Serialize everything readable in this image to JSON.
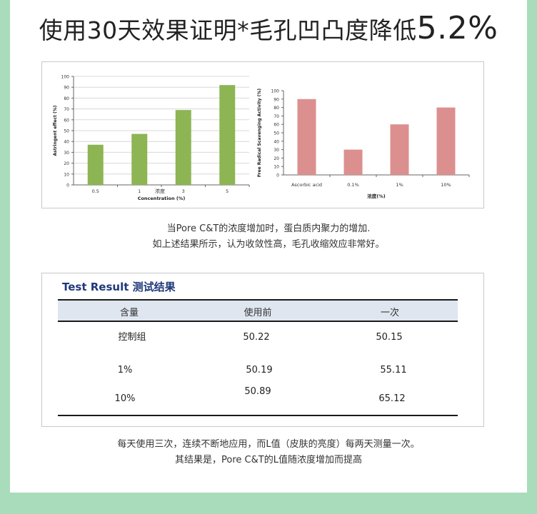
{
  "headline": {
    "text": "使用30天效果证明*毛孔凹凸度降低",
    "value": "5.2%"
  },
  "chart_data": [
    {
      "type": "bar",
      "categories": [
        "0.5",
        "1",
        "3",
        "5"
      ],
      "values": [
        37,
        47,
        69,
        92
      ],
      "ylabel": "Astringent effect (%)",
      "xlabel": "Concentration (%)",
      "xlabel_cn": "浓度",
      "ylim": [
        0,
        100
      ],
      "yticks": [
        0,
        10,
        20,
        30,
        40,
        50,
        60,
        70,
        80,
        90,
        100
      ],
      "color": "#8db553",
      "grid": true
    },
    {
      "type": "bar",
      "categories": [
        "Ascorbic acid",
        "0.1%",
        "1%",
        "10%"
      ],
      "values": [
        90,
        30,
        60,
        80
      ],
      "ylabel": "Free Radical Scavenging Activity (%)",
      "xlabel": "浓度(%)",
      "ylim": [
        0,
        100
      ],
      "yticks": [
        0,
        10,
        20,
        30,
        40,
        50,
        60,
        70,
        80,
        90,
        100
      ],
      "color": "#dc8f8f",
      "grid": false
    }
  ],
  "caption_top": [
    "当Pore C&T的浓度增加时，蛋白质内聚力的增加.",
    "如上述结果所示，认为收敛性高，毛孔收缩效应非常好。"
  ],
  "test_result": {
    "title": "Test Result 测试结果",
    "headers": [
      "含量",
      "使用前",
      "一次"
    ],
    "rows": [
      [
        "控制组",
        "50.22",
        "50.15"
      ],
      [
        "1%",
        "50.19",
        "55.11"
      ],
      [
        "10%",
        "50.89",
        "65.12"
      ]
    ]
  },
  "caption_bottom": [
    "每天使用三次，连续不断地应用，而L值（皮肤的亮度）每两天测量一次。",
    "其结果是，Pore C&T的L值随浓度增加而提高"
  ]
}
